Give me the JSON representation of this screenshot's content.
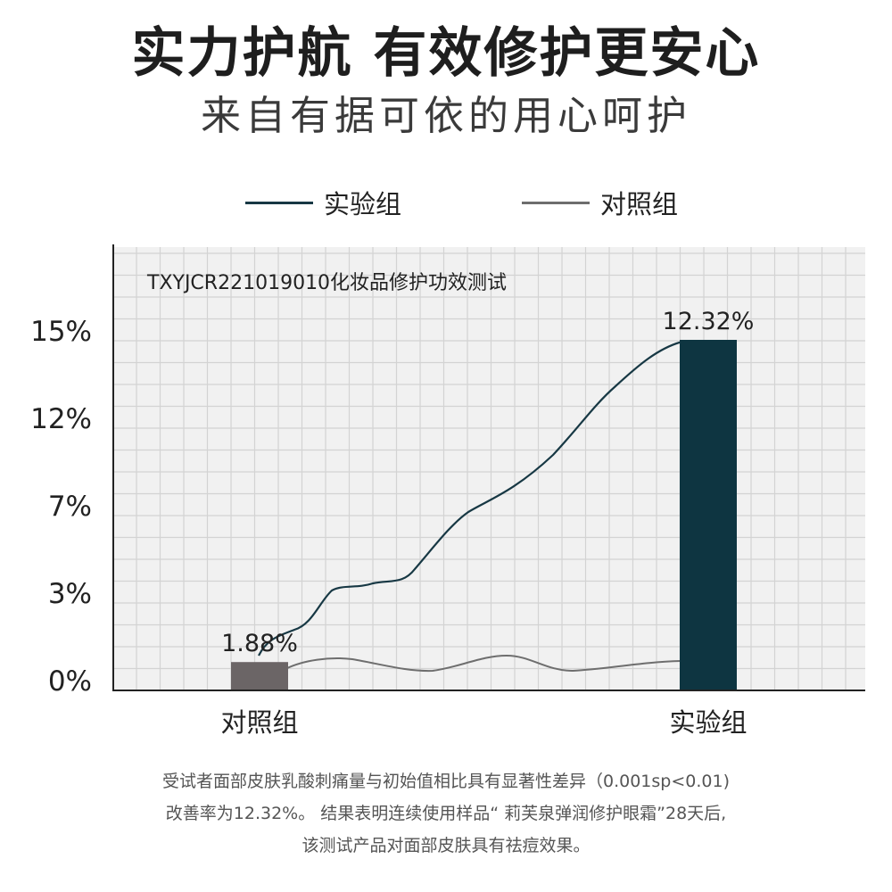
{
  "header": {
    "title": "实力护航 有效修护更安心",
    "subtitle": "来自有据可依的用心呵护"
  },
  "legend": {
    "items": [
      {
        "label": "实验组",
        "color": "#173844"
      },
      {
        "label": "对照组",
        "color": "#6e6e6e"
      }
    ]
  },
  "chart_data": {
    "type": "bar",
    "annotation": "TXYJCR221019010化妆品修护功效测试",
    "categories": [
      "对照组",
      "实验组"
    ],
    "values": [
      1.88,
      12.32
    ],
    "value_labels": [
      "1.88%",
      "12.32%"
    ],
    "colors": [
      "#6b6566",
      "#0e3541"
    ],
    "y_tick_labels": [
      "0%",
      "3%",
      "7%",
      "12%",
      "15%"
    ],
    "grid": true,
    "series": [
      {
        "name": "实验组",
        "color": "#173844"
      },
      {
        "name": "对照组",
        "color": "#6e6e6e"
      }
    ]
  },
  "footnote": {
    "lines": [
      "受试者面部皮肤乳酸刺痛量与初始值相比具有显著性差异（0.001sp<0.01)",
      "改善率为12.32%。 结果表明连续使用样品“ 莉芙泉弹润修护眼霜”28天后,",
      "该测试产品对面部皮肤具有祛痘效果。"
    ]
  }
}
